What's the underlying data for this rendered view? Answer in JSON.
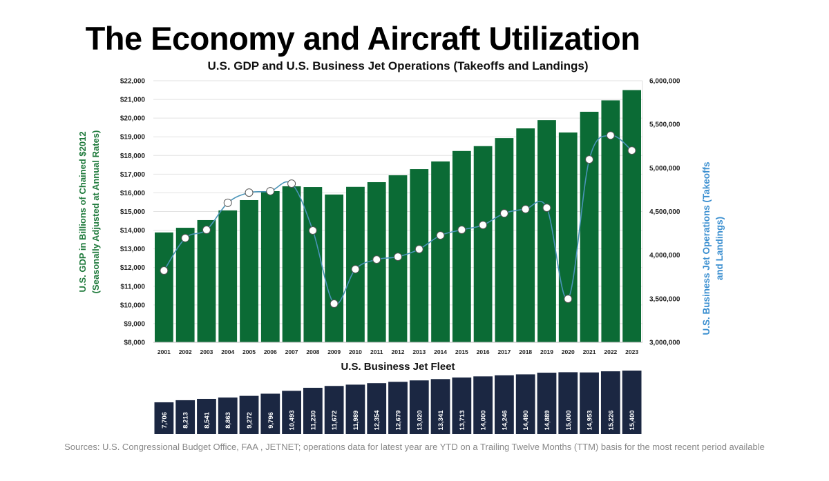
{
  "title": "The Economy and Aircraft Utilization",
  "sources": "Sources: U.S. Congressional Budget Office, FAA , JETNET; operations data for latest year are YTD on a Trailing Twelve Months (TTM) basis for the most recent period available",
  "chart_data": [
    {
      "type": "bar+line",
      "title": "U.S. GDP and U.S. Business Jet Operations (Takeoffs and Landings)",
      "categories": [
        "2001",
        "2002",
        "2003",
        "2004",
        "2005",
        "2006",
        "2007",
        "2008",
        "2009",
        "2010",
        "2011",
        "2012",
        "2013",
        "2014",
        "2015",
        "2016",
        "2017",
        "2018",
        "2019",
        "2020",
        "2021",
        "2022",
        "2023"
      ],
      "ylabel_left": [
        "U.S. GDP in Billions of Chained $2012",
        "(Seasonally Adjusted at Annual Rates)"
      ],
      "ylabel_right": [
        "U.S. Business Jet Operations (Takeoffs",
        "and Landings)"
      ],
      "ylim_left": [
        8000,
        22000
      ],
      "ylim_right": [
        3000000,
        6000000
      ],
      "yticks_left": [
        "$8,000",
        "$9,000",
        "$10,000",
        "$11,000",
        "$12,000",
        "$13,000",
        "$14,000",
        "$15,000",
        "$16,000",
        "$17,000",
        "$18,000",
        "$19,000",
        "$20,000",
        "$21,000",
        "$22,000"
      ],
      "yticks_right": [
        "3,000,000",
        "3,500,000",
        "4,000,000",
        "4,500,000",
        "5,000,000",
        "5,500,000",
        "6,000,000"
      ],
      "grid": true,
      "series": [
        {
          "type": "bar",
          "axis": "left",
          "color": "#0b6b35",
          "values": [
            13880,
            14130,
            14540,
            15060,
            15610,
            16090,
            16350,
            16310,
            15910,
            16320,
            16570,
            16940,
            17270,
            17680,
            18240,
            18500,
            18930,
            19450,
            19890,
            19230,
            20340,
            20950,
            21500
          ]
        },
        {
          "type": "line",
          "axis": "right",
          "color": "#4a94b8",
          "values": [
            3823000,
            4195000,
            4290000,
            4600000,
            4717000,
            4733000,
            4820000,
            4282000,
            3443000,
            3838000,
            3949000,
            3981000,
            4068000,
            4226000,
            4290000,
            4345000,
            4479000,
            4527000,
            4543000,
            3498000,
            5097000,
            5373000,
            5200000
          ]
        }
      ]
    },
    {
      "type": "bar",
      "title": "U.S. Business Jet Fleet",
      "color": "#1b2742",
      "values": [
        7706,
        8213,
        8541,
        8863,
        9272,
        9796,
        10493,
        11230,
        11672,
        11989,
        12354,
        12679,
        13020,
        13341,
        13713,
        14000,
        14246,
        14490,
        14889,
        15000,
        14953,
        15226,
        15400
      ],
      "labels": [
        "7,706",
        "8,213",
        "8,541",
        "8,863",
        "9,272",
        "9,796",
        "10,493",
        "11,230",
        "11,672",
        "11,989",
        "12,354",
        "12,679",
        "13,020",
        "13,341",
        "13,713",
        "14,000",
        "14,246",
        "14,490",
        "14,889",
        "15,000",
        "14,953",
        "15,226",
        "15,400"
      ]
    }
  ]
}
